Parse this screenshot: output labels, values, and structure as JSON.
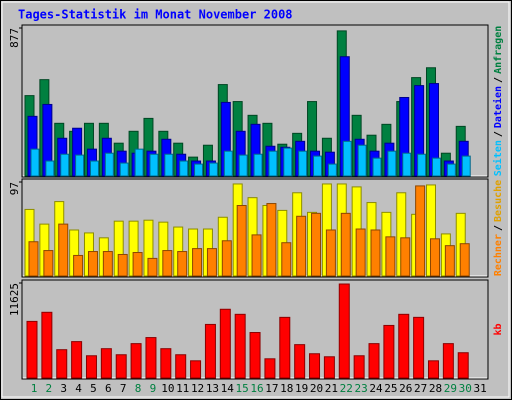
{
  "chart_data": [
    {
      "type": "bar",
      "title": "Tages-Statistik im Monat November 2008",
      "ylim": [
        0,
        877
      ],
      "yticks": [
        877
      ],
      "legend_separator": "/",
      "series": [
        {
          "name": "Anfragen",
          "color": "#008040",
          "values": [
            479,
            573,
            316,
            269,
            316,
            316,
            199,
            269,
            345,
            269,
            199,
            117,
            187,
            544,
            444,
            363,
            316,
            193,
            257,
            444,
            228,
            860,
            363,
            246,
            310,
            444,
            585,
            643,
            140,
            298,
            null
          ]
        },
        {
          "name": "Dateien",
          "color": "#0000ff",
          "values": [
            357,
            427,
            228,
            287,
            164,
            228,
            152,
            140,
            152,
            222,
            134,
            94,
            94,
            439,
            269,
            310,
            181,
            175,
            210,
            152,
            146,
            708,
            222,
            152,
            199,
            468,
            538,
            550,
            94,
            210,
            null
          ]
        },
        {
          "name": "Seiten",
          "color": "#00c0ff",
          "values": [
            164,
            94,
            134,
            129,
            94,
            140,
            82,
            164,
            134,
            134,
            94,
            76,
            82,
            152,
            129,
            134,
            152,
            170,
            152,
            123,
            76,
            210,
            187,
            111,
            152,
            140,
            134,
            111,
            76,
            123,
            null
          ]
        }
      ]
    },
    {
      "type": "bar",
      "ylim": [
        0,
        97
      ],
      "yticks": [
        97
      ],
      "legend_separator": "/",
      "series": [
        {
          "name": "Besuche",
          "color": "#ffff00",
          "label_color": "#e0a000",
          "values": [
            69,
            54,
            77,
            48,
            45,
            40,
            57,
            57,
            58,
            56,
            51,
            49,
            49,
            61,
            95,
            81,
            73,
            68,
            86,
            66,
            95,
            95,
            92,
            76,
            66,
            86,
            64,
            94,
            44,
            65,
            null
          ]
        },
        {
          "name": "Rechner",
          "color": "#ff8000",
          "label_color": "#ff8000",
          "values": [
            36,
            27,
            54,
            22,
            26,
            26,
            23,
            25,
            19,
            27,
            26,
            29,
            29,
            37,
            73,
            43,
            75,
            35,
            62,
            65,
            48,
            65,
            49,
            48,
            41,
            40,
            93,
            39,
            32,
            34,
            null
          ]
        }
      ]
    },
    {
      "type": "bar",
      "ylim": [
        0,
        11625
      ],
      "yticks": [
        11625
      ],
      "categories": [
        "1",
        "2",
        "3",
        "4",
        "5",
        "6",
        "7",
        "8",
        "9",
        "10",
        "11",
        "12",
        "13",
        "14",
        "15",
        "16",
        "17",
        "18",
        "19",
        "20",
        "21",
        "22",
        "23",
        "24",
        "25",
        "26",
        "27",
        "28",
        "29",
        "30",
        "31"
      ],
      "category_colors": [
        "#008040",
        "#008040",
        "#000000",
        "#000000",
        "#000000",
        "#000000",
        "#000000",
        "#008040",
        "#008040",
        "#000000",
        "#000000",
        "#000000",
        "#000000",
        "#000000",
        "#008040",
        "#008040",
        "#000000",
        "#000000",
        "#000000",
        "#000000",
        "#000000",
        "#008040",
        "#008040",
        "#000000",
        "#000000",
        "#000000",
        "#000000",
        "#000000",
        "#008040",
        "#008040",
        "#000000"
      ],
      "series": [
        {
          "name": "kb",
          "color": "#ff0000",
          "values": [
            6975,
            8077,
            3549,
            4528,
            2815,
            3671,
            2937,
            4283,
            5017,
            3671,
            2937,
            2203,
            6608,
            8444,
            7832,
            5629,
            2447,
            7465,
            4161,
            3059,
            2692,
            11503,
            2815,
            4283,
            6486,
            7832,
            7465,
            2203,
            4283,
            3182,
            null
          ]
        }
      ]
    }
  ]
}
